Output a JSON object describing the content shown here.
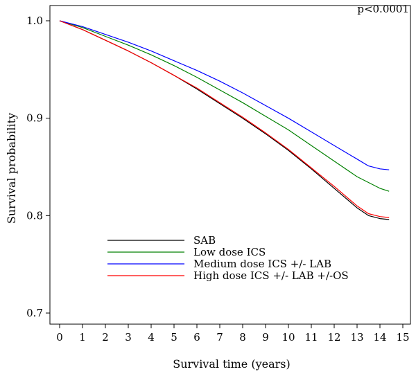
{
  "chart_data": {
    "type": "line",
    "title": "",
    "xlabel": "Survival time (years)",
    "ylabel": "Survival probability",
    "annotation": "p<0.0001",
    "xlim": [
      0,
      15
    ],
    "ylim": [
      0.7,
      1.0
    ],
    "x_ticks": [
      0,
      1,
      2,
      3,
      4,
      5,
      6,
      7,
      8,
      9,
      10,
      11,
      12,
      13,
      14,
      15
    ],
    "y_ticks": [
      0.7,
      0.8,
      0.9,
      1.0
    ],
    "y_tick_labels": [
      "0.7",
      "0.8",
      "0.9",
      "1.0"
    ],
    "grid": false,
    "legend_position": "lower-left",
    "series": [
      {
        "name": "SAB",
        "color": "#000000",
        "x": [
          0,
          1,
          2,
          3,
          4,
          5,
          6,
          7,
          8,
          9,
          10,
          11,
          12,
          13,
          13.5,
          14,
          14.4
        ],
        "values": [
          1.0,
          0.991,
          0.98,
          0.969,
          0.957,
          0.944,
          0.93,
          0.915,
          0.9,
          0.884,
          0.867,
          0.848,
          0.828,
          0.808,
          0.8,
          0.797,
          0.796
        ]
      },
      {
        "name": "Low dose ICS",
        "color": "#008000",
        "x": [
          0,
          1,
          2,
          3,
          4,
          5,
          6,
          7,
          8,
          9,
          10,
          11,
          12,
          13,
          14,
          14.4
        ],
        "values": [
          1.0,
          0.993,
          0.984,
          0.975,
          0.965,
          0.954,
          0.942,
          0.929,
          0.916,
          0.902,
          0.888,
          0.872,
          0.856,
          0.84,
          0.828,
          0.825
        ]
      },
      {
        "name": "Medium dose ICS +/- LAB",
        "color": "#0000ff",
        "x": [
          0,
          1,
          2,
          3,
          4,
          5,
          6,
          7,
          8,
          9,
          10,
          11,
          12,
          13,
          13.5,
          14,
          14.4
        ],
        "values": [
          1.0,
          0.994,
          0.986,
          0.978,
          0.969,
          0.959,
          0.949,
          0.938,
          0.926,
          0.913,
          0.9,
          0.886,
          0.872,
          0.858,
          0.851,
          0.848,
          0.847
        ]
      },
      {
        "name": "High dose ICS +/- LAB +/-OS",
        "color": "#ff0000",
        "x": [
          0,
          1,
          2,
          3,
          4,
          5,
          6,
          7,
          8,
          9,
          10,
          11,
          12,
          13,
          13.5,
          14,
          14.4
        ],
        "values": [
          1.0,
          0.991,
          0.98,
          0.969,
          0.957,
          0.944,
          0.931,
          0.916,
          0.901,
          0.885,
          0.868,
          0.849,
          0.83,
          0.81,
          0.802,
          0.799,
          0.798
        ]
      }
    ]
  }
}
